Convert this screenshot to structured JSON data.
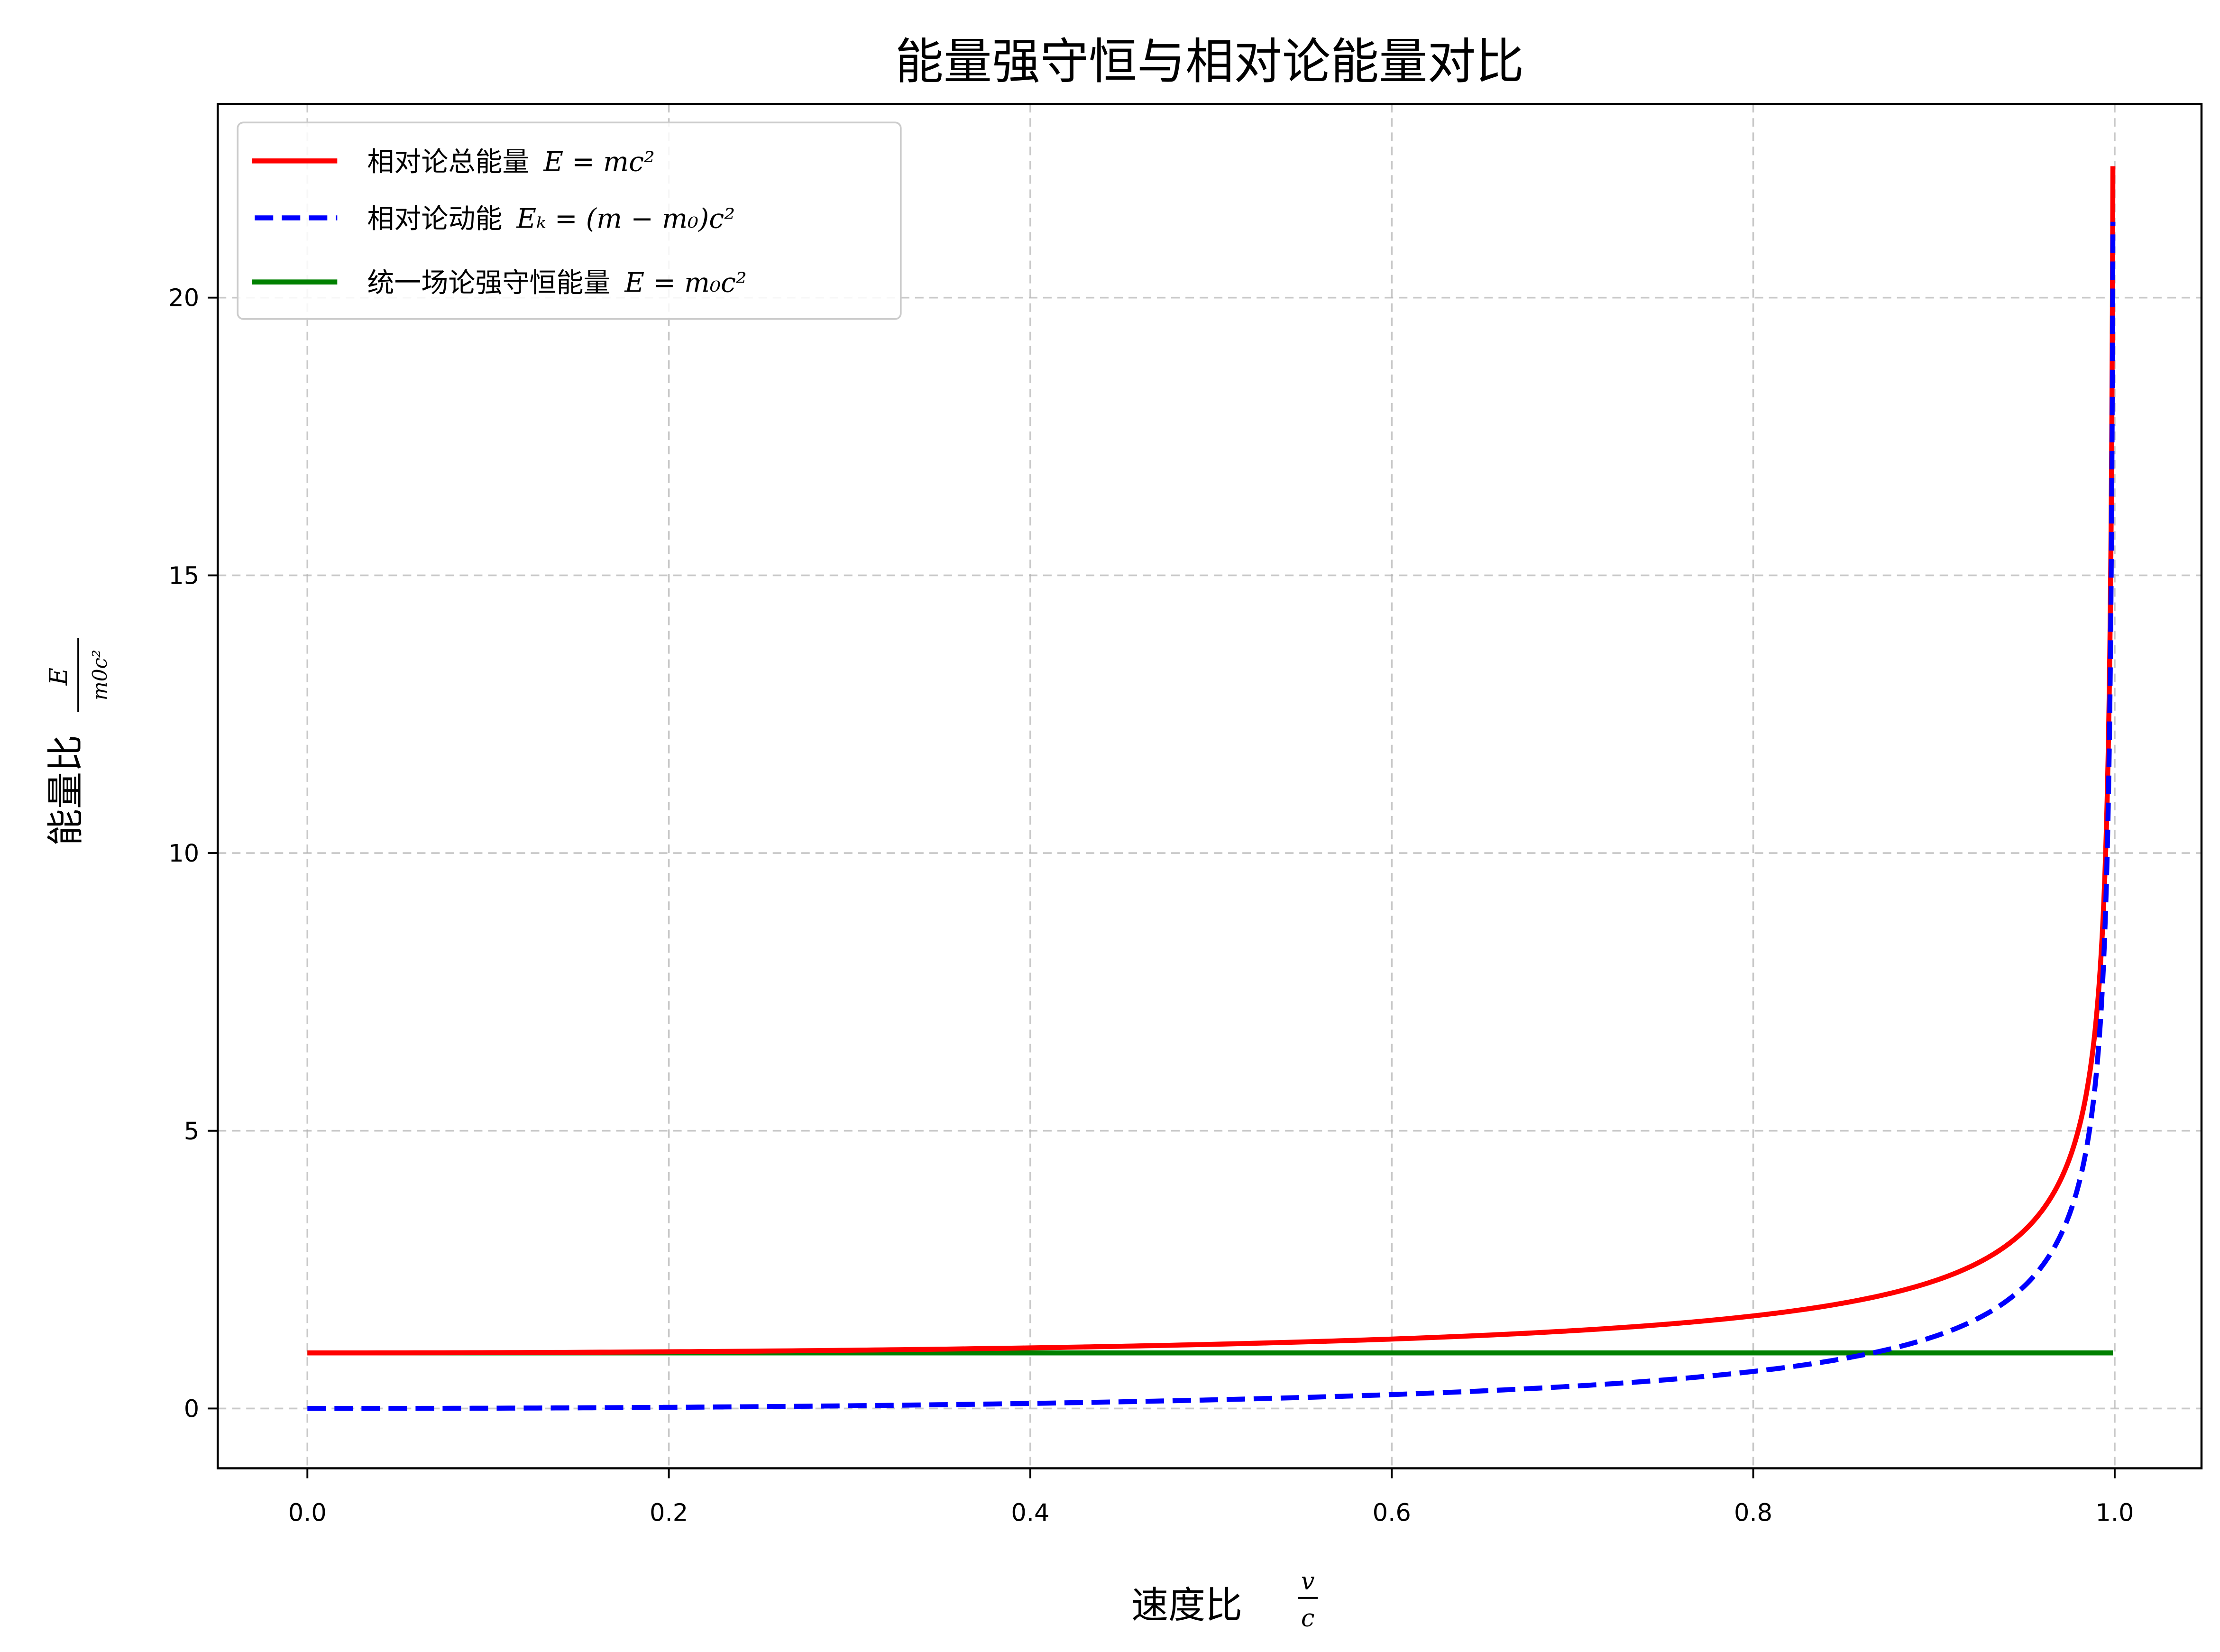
{
  "title": "能量强守恒与相对论能量对比",
  "xlabel": "速度比",
  "xlabel_math": {
    "num": "v",
    "den": "c"
  },
  "ylabel": "能量比",
  "ylabel_math": {
    "num": "E",
    "den": "m0c²"
  },
  "xticks": [
    "0.0",
    "0.2",
    "0.4",
    "0.6",
    "0.8",
    "1.0"
  ],
  "yticks": [
    "0",
    "5",
    "10",
    "15",
    "20"
  ],
  "legend": [
    {
      "label": "相对论总能量",
      "math": "E = mc²",
      "color": "#ff0000",
      "style": "solid"
    },
    {
      "label": "相对论动能",
      "math": "Eₖ = (m − m₀)c²",
      "color": "#0000ff",
      "style": "dashed"
    },
    {
      "label": "统一场论强守恒能量",
      "math": "E = m₀c²",
      "color": "#008000",
      "style": "solid"
    }
  ],
  "chart_data": {
    "type": "line",
    "title": "能量强守恒与相对论能量对比",
    "xlabel": "速度比 v/c",
    "ylabel": "能量比 E/(m0c²)",
    "xlim": [
      -0.05,
      1.05
    ],
    "ylim": [
      -1.1,
      23.6
    ],
    "grid": true,
    "legend_position": "upper left",
    "x": [
      0.0,
      0.1,
      0.2,
      0.3,
      0.4,
      0.5,
      0.6,
      0.7,
      0.8,
      0.85,
      0.9,
      0.95,
      0.97,
      0.98,
      0.99,
      0.995,
      0.999
    ],
    "series": [
      {
        "name": "相对论总能量 E=mc²",
        "color": "#ff0000",
        "style": "solid",
        "values": [
          1.0,
          1.005,
          1.021,
          1.048,
          1.091,
          1.155,
          1.25,
          1.4,
          1.667,
          1.898,
          2.294,
          3.203,
          4.113,
          5.025,
          7.089,
          10.013,
          22.366
        ]
      },
      {
        "name": "相对论动能 Ek=(m−m0)c²",
        "color": "#0000ff",
        "style": "dashed",
        "values": [
          0.0,
          0.005,
          0.021,
          0.048,
          0.091,
          0.155,
          0.25,
          0.4,
          0.667,
          0.898,
          1.294,
          2.203,
          3.113,
          4.025,
          6.089,
          9.013,
          21.366
        ]
      },
      {
        "name": "统一场论强守恒能量 E=m0c²",
        "color": "#008000",
        "style": "solid",
        "values": [
          1,
          1,
          1,
          1,
          1,
          1,
          1,
          1,
          1,
          1,
          1,
          1,
          1,
          1,
          1,
          1,
          1
        ]
      }
    ]
  }
}
